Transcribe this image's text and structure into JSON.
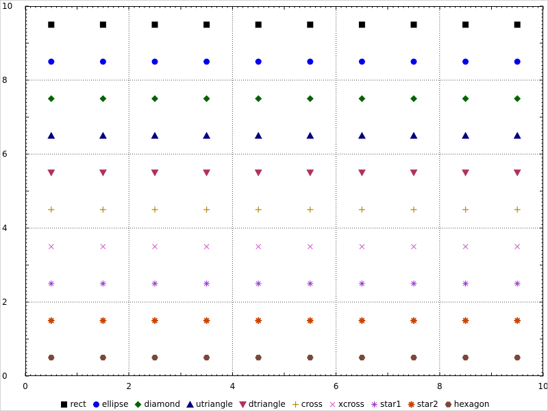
{
  "figure": {
    "background": "#ffffff",
    "frame_color": "#000000",
    "grid": {
      "style": "dotted",
      "color": "#444444"
    }
  },
  "chart_data": {
    "type": "scatter",
    "title": "",
    "xlabel": "",
    "ylabel": "",
    "xlim": [
      0,
      10
    ],
    "ylim": [
      0,
      10
    ],
    "x_ticks": [
      0,
      2,
      4,
      6,
      8,
      10
    ],
    "y_ticks": [
      0,
      2,
      4,
      6,
      8,
      10
    ],
    "x_tick_labels": [
      "0",
      "2",
      "4",
      "6",
      "8",
      "10"
    ],
    "y_tick_labels": [
      "0",
      "2",
      "4",
      "6",
      "8",
      "10"
    ],
    "minor_tick_step": 0.1,
    "grid_lines_x": [
      2,
      4,
      6,
      8
    ],
    "grid_lines_y": [
      2,
      4,
      6,
      8
    ],
    "x": [
      0.5,
      1.5,
      2.5,
      3.5,
      4.5,
      5.5,
      6.5,
      7.5,
      8.5,
      9.5
    ],
    "series": [
      {
        "name": "rect",
        "marker": "rect",
        "color": "#000000",
        "y": 9.5
      },
      {
        "name": "ellipse",
        "marker": "ellipse",
        "color": "#0000ee",
        "y": 8.5
      },
      {
        "name": "diamond",
        "marker": "diamond",
        "color": "#006400",
        "y": 7.5
      },
      {
        "name": "utriangle",
        "marker": "utriangle",
        "color": "#000080",
        "y": 6.5
      },
      {
        "name": "dtriangle",
        "marker": "dtriangle",
        "color": "#b03060",
        "y": 5.5
      },
      {
        "name": "cross",
        "marker": "cross",
        "color": "#b8860b",
        "y": 4.5
      },
      {
        "name": "xcross",
        "marker": "xcross",
        "color": "#cc66cc",
        "y": 3.5
      },
      {
        "name": "star1",
        "marker": "star1",
        "color": "#9933cc",
        "y": 2.5
      },
      {
        "name": "star2",
        "marker": "star2",
        "color": "#cc4400",
        "y": 1.5
      },
      {
        "name": "hexagon",
        "marker": "hexagon",
        "color": "#7b473a",
        "y": 0.5
      }
    ],
    "legend": {
      "position": "bottom",
      "entries": [
        "rect",
        "ellipse",
        "diamond",
        "utriangle",
        "dtriangle",
        "cross",
        "xcross",
        "star1",
        "star2",
        "hexagon"
      ]
    }
  }
}
